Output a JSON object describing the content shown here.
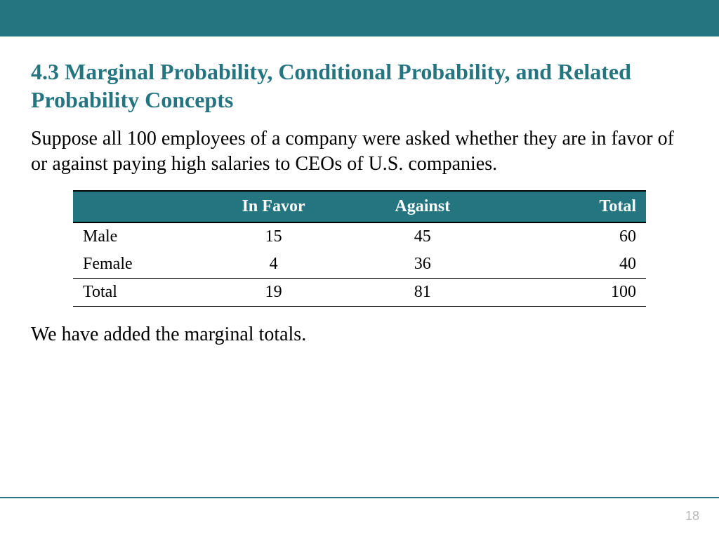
{
  "colors": {
    "accent": "#257581",
    "header_bg": "#257581",
    "footer_line": "#257581",
    "page_num": "#b9b9b9",
    "table_header_sep": "rgba(255,255,255,0.35)"
  },
  "title": "4.3 Marginal Probability, Conditional Probability, and Related Probability Concepts",
  "intro": "Suppose all 100 employees of a company were asked whether they are in favor of or against paying high salaries to CEOs of U.S. companies.",
  "outro": "We have added the marginal totals.",
  "page_number": "18",
  "table": {
    "columns": [
      "",
      "In Favor",
      "Against",
      "Total"
    ],
    "rows": [
      [
        "Male",
        "15",
        "45",
        "60"
      ],
      [
        "Female",
        "4",
        "36",
        "40"
      ],
      [
        "Total",
        "19",
        "81",
        "100"
      ]
    ],
    "col_widths_pct": [
      22,
      26,
      26,
      26
    ]
  }
}
